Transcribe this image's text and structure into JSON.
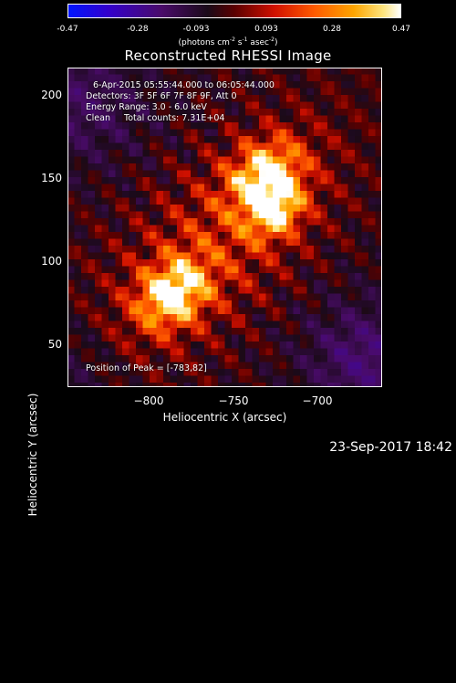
{
  "colorbar": {
    "ticks": [
      "-0.47",
      "-0.28",
      "-0.093",
      "0.093",
      "0.28",
      "0.47"
    ],
    "tick_values": [
      -0.47,
      -0.28,
      -0.093,
      0.093,
      0.28,
      0.47
    ],
    "min": -0.47,
    "max": 0.47,
    "units_text": "(photons cm",
    "units_exp1": "-2",
    "units_mid": " s",
    "units_exp2": "-1",
    "units_mid2": " asec",
    "units_exp3": "-2",
    "units_end": ")"
  },
  "chart_data": {
    "type": "heatmap",
    "title": "Reconstructed RHESSI Image",
    "xlabel": "Heliocentric X (arcsec)",
    "ylabel": "Heliocentric Y (arcsec)",
    "xlim": [
      -848,
      -655
    ],
    "ylim": [
      24,
      222
    ],
    "xticks": [
      -800,
      -750,
      -700
    ],
    "xtick_labels": [
      "−800",
      "−750",
      "−700"
    ],
    "yticks": [
      50,
      100,
      150,
      200
    ],
    "ytick_labels": [
      "50",
      "100",
      "150",
      "200"
    ],
    "sources": [
      {
        "x": -783,
        "y": 82,
        "peak": 0.47,
        "sigma": 14
      },
      {
        "x": -727,
        "y": 155,
        "peak": 0.45,
        "sigma": 14
      },
      {
        "x": -720,
        "y": 133,
        "peak": 0.38,
        "sigma": 11
      }
    ],
    "peak_position": [
      -783,
      82
    ],
    "annotations": {
      "line1": "6-Apr-2015 05:55:44.000 to 06:05:44.000",
      "line2": "Detectors: 3F 5F 6F 7F 8F 9F, Att 0",
      "line3": "Energy Range: 3.0 - 6.0 keV",
      "line4": "Clean     Total counts: 7.31E+04",
      "peak_label": "Position of Peak = [-783,82]"
    }
  },
  "timestamp": "23-Sep-2017 18:42"
}
